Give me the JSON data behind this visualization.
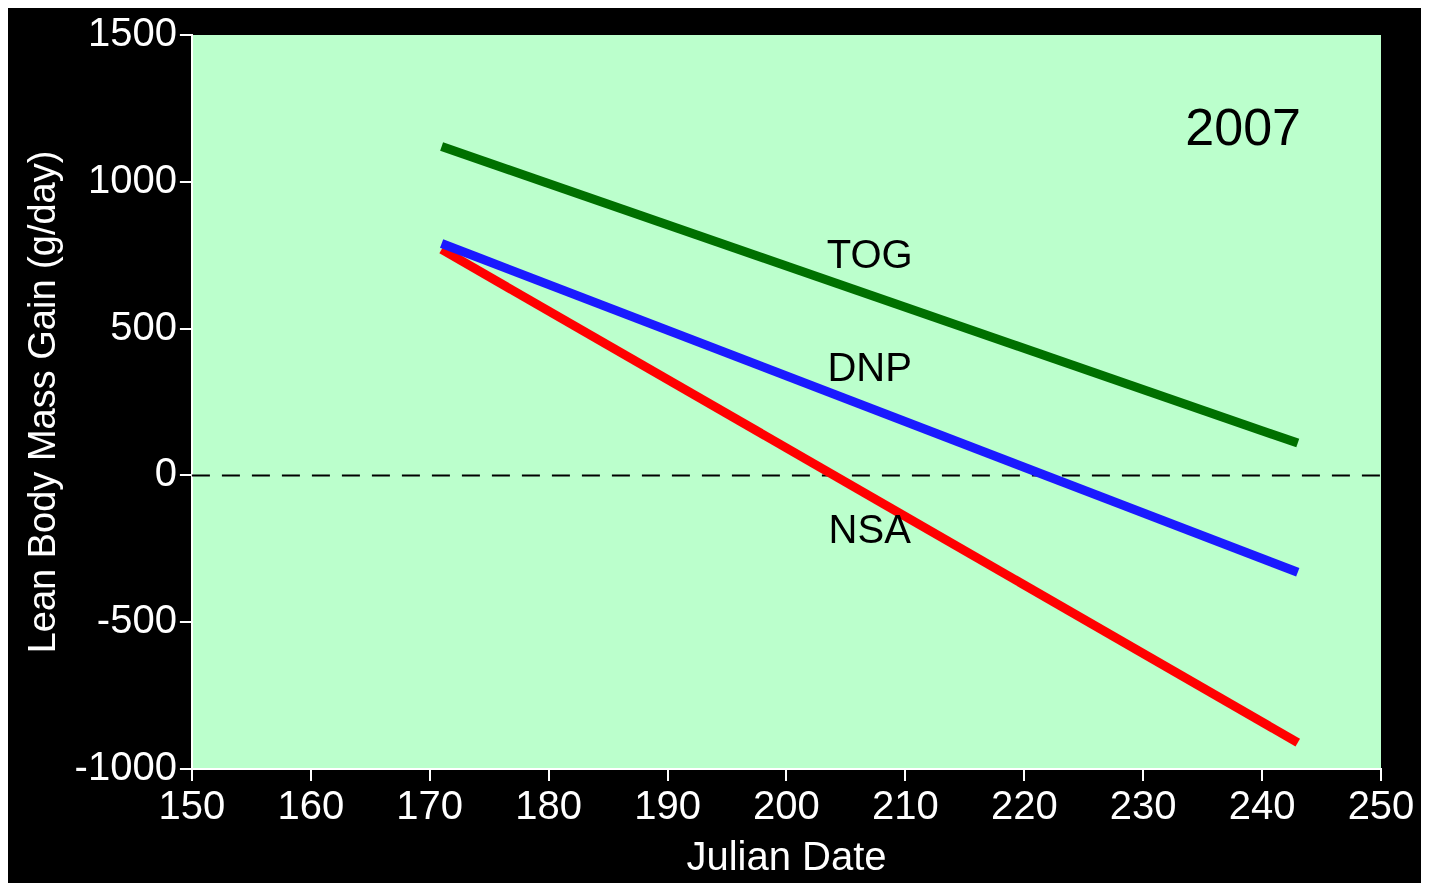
{
  "chart_data": {
    "type": "line",
    "xlabel": "Julian Date",
    "ylabel": "Lean Body Mass Gain (g/day)",
    "annotations": [
      "2007"
    ],
    "x": [
      171,
      243
    ],
    "xlim": [
      150,
      250
    ],
    "xticks": [
      150,
      160,
      170,
      180,
      190,
      200,
      210,
      220,
      230,
      240,
      250
    ],
    "ylim": [
      -1000,
      1500
    ],
    "yticks": [
      -1000,
      -500,
      0,
      500,
      1000,
      1500
    ],
    "grid": false,
    "legend": false,
    "marker": "none",
    "line_style": "solid",
    "ref_lines": [
      {
        "axis": "y",
        "value": 0,
        "color": "#000000",
        "line_style": "dashed"
      }
    ],
    "series": [
      {
        "name": "TOG",
        "color": "#007000",
        "values": [
          1120,
          110
        ]
      },
      {
        "name": "DNP",
        "color": "#1a1aff",
        "values": [
          790,
          -330
        ]
      },
      {
        "name": "NSA",
        "color": "#ff0000",
        "values": [
          770,
          -910
        ]
      }
    ]
  }
}
